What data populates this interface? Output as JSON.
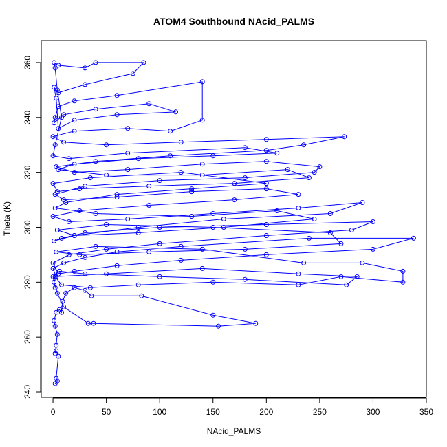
{
  "chart_data": {
    "type": "line",
    "title": "ATOM4 Southbound NAcid_PALMS",
    "xlabel": "NAcid_PALMS",
    "ylabel": "Theta (K)",
    "xlim": [
      -11,
      350
    ],
    "ylim": [
      238,
      368
    ],
    "xticks": [
      0,
      50,
      100,
      150,
      200,
      250,
      300,
      350
    ],
    "yticks": [
      240,
      260,
      280,
      300,
      320,
      340,
      360
    ],
    "grid": false,
    "legend": "none",
    "series_color": "#0000ff",
    "marker": "open-circle",
    "series": [
      {
        "values": [
          [
            2,
            243
          ],
          [
            4,
            244
          ],
          [
            3,
            245
          ],
          [
            5,
            253
          ],
          [
            3,
            255
          ],
          [
            2,
            254
          ],
          [
            3,
            257
          ],
          [
            4,
            261
          ],
          [
            2,
            264
          ],
          [
            1,
            266
          ],
          [
            3,
            269
          ],
          [
            6,
            270
          ],
          [
            8,
            269
          ],
          [
            9,
            273
          ],
          [
            12,
            276
          ],
          [
            20,
            278
          ],
          [
            30,
            277
          ],
          [
            36,
            275
          ],
          [
            83,
            275
          ],
          [
            150,
            268
          ],
          [
            190,
            265
          ],
          [
            155,
            264
          ],
          [
            38,
            265
          ],
          [
            33,
            265
          ],
          [
            10,
            271
          ],
          [
            4,
            276
          ],
          [
            1,
            280
          ],
          [
            3,
            282
          ],
          [
            0,
            285
          ],
          [
            10,
            287
          ],
          [
            30,
            289
          ],
          [
            60,
            291
          ],
          [
            120,
            293
          ],
          [
            240,
            296
          ],
          [
            338,
            296
          ],
          [
            300,
            292
          ],
          [
            200,
            290
          ],
          [
            120,
            288
          ],
          [
            60,
            286
          ],
          [
            20,
            284
          ],
          [
            5,
            283
          ],
          [
            0,
            287
          ],
          [
            15,
            290
          ],
          [
            50,
            292
          ],
          [
            100,
            294
          ],
          [
            200,
            297
          ],
          [
            280,
            299
          ],
          [
            300,
            302
          ],
          [
            200,
            301
          ],
          [
            100,
            300
          ],
          [
            30,
            298
          ],
          [
            8,
            296
          ],
          [
            1,
            295
          ],
          [
            20,
            297
          ],
          [
            80,
            300
          ],
          [
            160,
            303
          ],
          [
            260,
            305
          ],
          [
            290,
            309
          ],
          [
            230,
            307
          ],
          [
            150,
            305
          ],
          [
            70,
            303
          ],
          [
            15,
            302
          ],
          [
            0,
            304
          ],
          [
            25,
            306
          ],
          [
            90,
            308
          ],
          [
            170,
            310
          ],
          [
            230,
            312
          ],
          [
            200,
            314
          ],
          [
            130,
            313
          ],
          [
            60,
            311
          ],
          [
            10,
            310
          ],
          [
            2,
            312
          ],
          [
            30,
            315
          ],
          [
            100,
            317
          ],
          [
            180,
            318
          ],
          [
            245,
            320
          ],
          [
            250,
            322
          ],
          [
            200,
            324
          ],
          [
            140,
            323
          ],
          [
            70,
            321
          ],
          [
            20,
            320
          ],
          [
            3,
            322
          ],
          [
            40,
            324
          ],
          [
            110,
            326
          ],
          [
            200,
            328
          ],
          [
            235,
            330
          ],
          [
            273,
            333
          ],
          [
            200,
            332
          ],
          [
            120,
            331
          ],
          [
            50,
            330
          ],
          [
            10,
            331
          ],
          [
            0,
            333
          ],
          [
            20,
            335
          ],
          [
            70,
            336
          ],
          [
            110,
            335
          ],
          [
            140,
            339
          ],
          [
            140,
            353
          ],
          [
            60,
            348
          ],
          [
            20,
            346
          ],
          [
            5,
            344
          ],
          [
            2,
            340
          ],
          [
            1,
            338
          ],
          [
            10,
            341
          ],
          [
            40,
            343
          ],
          [
            90,
            345
          ],
          [
            115,
            342
          ],
          [
            60,
            341
          ],
          [
            20,
            339
          ],
          [
            5,
            336
          ],
          [
            3,
            347
          ],
          [
            1,
            351
          ],
          [
            5,
            349
          ],
          [
            30,
            352
          ],
          [
            75,
            356
          ],
          [
            85,
            360
          ],
          [
            40,
            360
          ],
          [
            30,
            358
          ],
          [
            5,
            359
          ],
          [
            1,
            360
          ],
          [
            2,
            358
          ],
          [
            4,
            350
          ],
          [
            8,
            340
          ],
          [
            2,
            330
          ],
          [
            0,
            326
          ],
          [
            15,
            325
          ],
          [
            70,
            327
          ],
          [
            180,
            329
          ],
          [
            210,
            327
          ],
          [
            150,
            326
          ],
          [
            80,
            325
          ],
          [
            20,
            323
          ],
          [
            5,
            321
          ],
          [
            50,
            319
          ],
          [
            140,
            319
          ],
          [
            220,
            321
          ],
          [
            240,
            318
          ],
          [
            170,
            316
          ],
          [
            90,
            315
          ],
          [
            25,
            314
          ],
          [
            4,
            313
          ],
          [
            0,
            316
          ],
          [
            35,
            318
          ],
          [
            120,
            320
          ],
          [
            200,
            316
          ],
          [
            130,
            314
          ],
          [
            60,
            312
          ],
          [
            12,
            309
          ],
          [
            2,
            307
          ],
          [
            40,
            305
          ],
          [
            130,
            304
          ],
          [
            210,
            306
          ],
          [
            245,
            303
          ],
          [
            160,
            300
          ],
          [
            80,
            298
          ],
          [
            20,
            297
          ],
          [
            4,
            299
          ],
          [
            50,
            301
          ],
          [
            150,
            300
          ],
          [
            260,
            298
          ],
          [
            270,
            294
          ],
          [
            180,
            292
          ],
          [
            90,
            291
          ],
          [
            25,
            290
          ],
          [
            3,
            291
          ],
          [
            40,
            293
          ],
          [
            140,
            292
          ],
          [
            235,
            287
          ],
          [
            290,
            287
          ],
          [
            328,
            284
          ],
          [
            328,
            280
          ],
          [
            270,
            282
          ],
          [
            230,
            279
          ],
          [
            150,
            280
          ],
          [
            80,
            279
          ],
          [
            35,
            278
          ],
          [
            8,
            279
          ],
          [
            2,
            282
          ],
          [
            50,
            283
          ],
          [
            140,
            285
          ],
          [
            230,
            283
          ],
          [
            285,
            282
          ],
          [
            275,
            279
          ],
          [
            180,
            281
          ],
          [
            100,
            282
          ],
          [
            30,
            283
          ],
          [
            6,
            284
          ],
          [
            0,
            282
          ],
          [
            2,
            278
          ]
        ]
      }
    ]
  }
}
